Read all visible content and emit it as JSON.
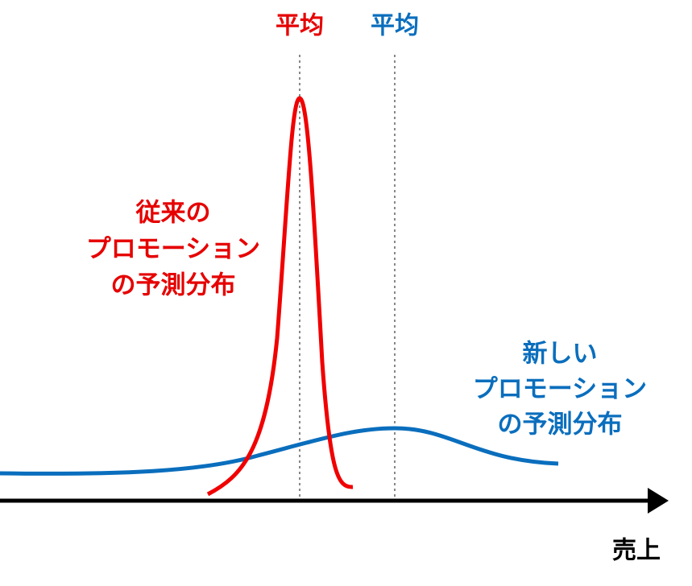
{
  "x_axis_label": "売上",
  "distributions": [
    {
      "mean_label": "平均",
      "name_lines": [
        "従来の",
        "プロモーション",
        "の予測分布"
      ]
    },
    {
      "mean_label": "平均",
      "name_lines": [
        "新しい",
        "プロモーション",
        "の予測分布"
      ]
    }
  ]
}
